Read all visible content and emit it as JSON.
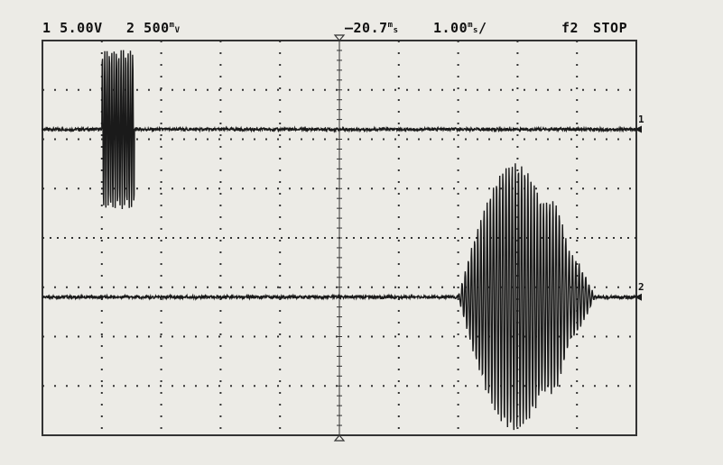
{
  "header": {
    "ch1_num": "1",
    "ch1_scale": "5.00V",
    "ch2_num": "2",
    "ch2_scale_value": "500",
    "ch2_scale_unit_top": "m",
    "ch2_scale_unit_bottom": "V",
    "trigger_position": "20.7",
    "trigger_unit_top": "m",
    "trigger_unit_bottom": "s",
    "timebase_value": "1.00",
    "timebase_unit_top": "m",
    "timebase_unit_bottom": "s",
    "timebase_suffix": "/",
    "trigger_source": "f2",
    "run_state": "STOP"
  },
  "markers": {
    "ch1": "1",
    "ch2": "2"
  },
  "colors": {
    "trace": "#1a1a1a",
    "grid": "#333333",
    "background": "#ecebe6"
  },
  "chart_data": {
    "type": "line",
    "x_divisions": 10,
    "y_divisions": 8,
    "xlim": [
      0,
      10
    ],
    "ylim": [
      -4,
      4
    ],
    "series": [
      {
        "name": "1",
        "baseline_div": 2.2,
        "bursts": [
          {
            "start_div": 1.0,
            "end_div": 1.55,
            "amplitude_div": 1.6,
            "cycles": 14
          }
        ]
      },
      {
        "name": "2",
        "baseline_div": -1.2,
        "bursts": [
          {
            "start_div": 7.0,
            "end_div": 8.9,
            "amplitude_div": 2.7,
            "cycles": 36
          },
          {
            "start_div": 8.3,
            "end_div": 9.3,
            "amplitude_div": 0.9,
            "cycles": 18
          }
        ]
      }
    ]
  }
}
